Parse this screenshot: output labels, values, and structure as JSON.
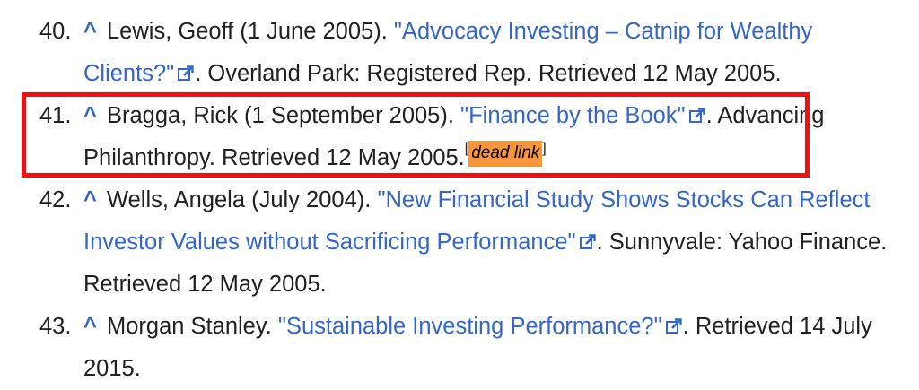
{
  "references": [
    {
      "number": "40.",
      "caret": "^",
      "before": "Lewis, Geoff (1 June 2005). ",
      "link": "\"Advocacy Investing – Catnip for Wealthy Clients?\"",
      "after": ". Overland Park: Registered Rep. Retrieved 12 May 2005."
    },
    {
      "number": "41.",
      "caret": "^",
      "before": "Bragga, Rick (1 September 2005). ",
      "link": "\"Finance by the Book\"",
      "after": ". Advancing Philanthropy. Retrieved 12 May 2005.",
      "note_open": "[",
      "note": "dead link",
      "note_close": "]"
    },
    {
      "number": "42.",
      "caret": "^",
      "before": "Wells, Angela (July 2004). ",
      "link": "\"New Financial Study Shows Stocks Can Reflect Investor Values without Sacrificing Performance\"",
      "after": ". Sunnyvale: Yahoo Finance. Retrieved 12 May 2005."
    },
    {
      "number": "43.",
      "caret": "^",
      "before": "Morgan Stanley. ",
      "link": "\"Sustainable Investing Performance?\"",
      "after": ". Retrieved 14 July 2015."
    }
  ],
  "colors": {
    "link": "#3366cc",
    "highlight": "#ee1111",
    "dead_link_bg": "#f6953a",
    "text": "#202122"
  },
  "icons": {
    "external": "external-link-icon"
  }
}
